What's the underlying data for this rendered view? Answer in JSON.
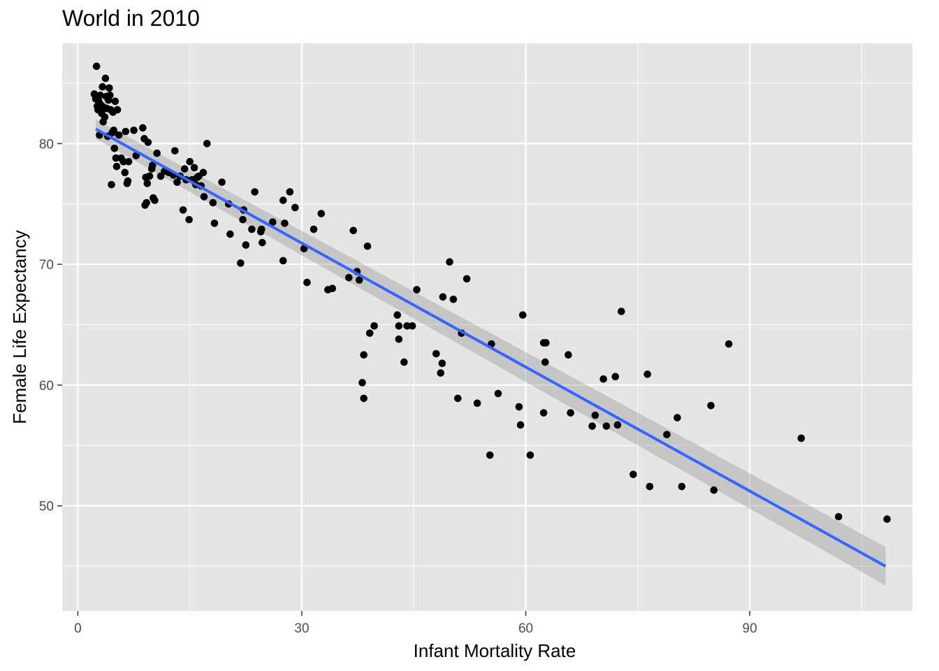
{
  "chart_data": {
    "type": "scatter",
    "title": "World in 2010",
    "xlabel": "Infant Mortality Rate",
    "ylabel": "Female Life Expectancy",
    "xlim": [
      -2.1,
      111.8
    ],
    "ylim": [
      41.3,
      88.3
    ],
    "x_ticks": [
      0,
      30,
      60,
      90
    ],
    "y_ticks": [
      50,
      60,
      70,
      80
    ],
    "grid": true,
    "background": "#e5e5e5",
    "point_color": "#000000",
    "fit_line_color": "#3366ff",
    "ribbon_color": "#999999",
    "fit_line": {
      "type": "linear",
      "x": [
        2.4,
        108.2
      ],
      "y": [
        81.2,
        45.0
      ],
      "ci_lower": [
        80.4,
        43.4
      ],
      "ci_upper": [
        82.0,
        46.6
      ]
    },
    "points": [
      [
        2.2,
        84.1
      ],
      [
        2.4,
        83.7
      ],
      [
        2.5,
        86.4
      ],
      [
        2.6,
        83.1
      ],
      [
        2.7,
        82.8
      ],
      [
        2.8,
        83.5
      ],
      [
        2.9,
        80.7
      ],
      [
        3.0,
        84.0
      ],
      [
        3.1,
        83.2
      ],
      [
        3.2,
        82.5
      ],
      [
        3.3,
        84.7
      ],
      [
        3.4,
        81.8
      ],
      [
        3.5,
        83.0
      ],
      [
        3.6,
        82.2
      ],
      [
        3.7,
        85.4
      ],
      [
        3.8,
        83.9
      ],
      [
        3.9,
        82.9
      ],
      [
        4.0,
        80.6
      ],
      [
        4.1,
        83.6
      ],
      [
        4.2,
        84.6
      ],
      [
        4.3,
        84.0
      ],
      [
        4.4,
        82.8
      ],
      [
        4.5,
        76.6
      ],
      [
        4.6,
        80.9
      ],
      [
        4.7,
        82.6
      ],
      [
        4.8,
        81.1
      ],
      [
        4.9,
        79.6
      ],
      [
        5.0,
        83.5
      ],
      [
        5.1,
        78.8
      ],
      [
        5.2,
        78.1
      ],
      [
        5.3,
        82.8
      ],
      [
        5.5,
        80.7
      ],
      [
        5.8,
        78.8
      ],
      [
        6.1,
        78.5
      ],
      [
        6.3,
        77.6
      ],
      [
        6.4,
        81.0
      ],
      [
        6.6,
        76.7
      ],
      [
        6.7,
        76.9
      ],
      [
        6.8,
        78.5
      ],
      [
        7.5,
        81.1
      ],
      [
        7.8,
        79.0
      ],
      [
        8.7,
        81.3
      ],
      [
        8.9,
        80.4
      ],
      [
        9.0,
        74.9
      ],
      [
        9.1,
        77.2
      ],
      [
        9.2,
        75.1
      ],
      [
        9.3,
        76.7
      ],
      [
        9.4,
        80.1
      ],
      [
        9.6,
        77.3
      ],
      [
        9.9,
        77.9
      ],
      [
        10.0,
        78.2
      ],
      [
        10.1,
        75.5
      ],
      [
        10.3,
        75.3
      ],
      [
        10.6,
        79.2
      ],
      [
        11.1,
        77.3
      ],
      [
        11.6,
        77.7
      ],
      [
        12.2,
        77.6
      ],
      [
        12.8,
        77.4
      ],
      [
        13.0,
        79.4
      ],
      [
        13.3,
        76.8
      ],
      [
        13.7,
        77.3
      ],
      [
        14.1,
        74.5
      ],
      [
        14.3,
        77.9
      ],
      [
        14.5,
        77.0
      ],
      [
        14.9,
        73.7
      ],
      [
        15.0,
        78.5
      ],
      [
        15.3,
        77.0
      ],
      [
        15.6,
        78.0
      ],
      [
        15.8,
        76.6
      ],
      [
        16.0,
        77.2
      ],
      [
        16.2,
        77.3
      ],
      [
        16.5,
        76.5
      ],
      [
        16.8,
        77.6
      ],
      [
        16.9,
        75.6
      ],
      [
        17.3,
        80.0
      ],
      [
        18.1,
        75.1
      ],
      [
        18.3,
        73.4
      ],
      [
        19.3,
        76.8
      ],
      [
        20.2,
        75.0
      ],
      [
        20.4,
        72.5
      ],
      [
        21.8,
        70.1
      ],
      [
        22.1,
        73.7
      ],
      [
        22.2,
        74.5
      ],
      [
        22.5,
        71.6
      ],
      [
        23.3,
        72.9
      ],
      [
        23.7,
        76.0
      ],
      [
        24.5,
        72.7
      ],
      [
        24.6,
        72.9
      ],
      [
        24.7,
        71.8
      ],
      [
        26.1,
        73.5
      ],
      [
        27.5,
        75.3
      ],
      [
        27.5,
        70.3
      ],
      [
        27.7,
        73.4
      ],
      [
        28.4,
        76.0
      ],
      [
        29.1,
        74.7
      ],
      [
        30.3,
        71.3
      ],
      [
        30.7,
        68.5
      ],
      [
        31.6,
        72.9
      ],
      [
        32.6,
        74.2
      ],
      [
        33.5,
        67.9
      ],
      [
        34.1,
        68.0
      ],
      [
        36.3,
        68.9
      ],
      [
        36.9,
        72.8
      ],
      [
        37.4,
        69.4
      ],
      [
        37.7,
        68.7
      ],
      [
        38.1,
        60.2
      ],
      [
        38.3,
        62.5
      ],
      [
        38.3,
        58.9
      ],
      [
        38.8,
        71.5
      ],
      [
        39.1,
        64.3
      ],
      [
        39.7,
        64.9
      ],
      [
        42.8,
        65.8
      ],
      [
        43.0,
        64.9
      ],
      [
        43.0,
        63.8
      ],
      [
        43.7,
        61.9
      ],
      [
        44.1,
        64.9
      ],
      [
        44.8,
        64.9
      ],
      [
        45.4,
        67.9
      ],
      [
        48.0,
        62.6
      ],
      [
        48.6,
        61.0
      ],
      [
        48.8,
        61.8
      ],
      [
        48.9,
        67.3
      ],
      [
        49.8,
        70.2
      ],
      [
        50.3,
        67.1
      ],
      [
        50.9,
        58.9
      ],
      [
        51.4,
        64.3
      ],
      [
        52.1,
        68.8
      ],
      [
        53.5,
        58.5
      ],
      [
        55.2,
        54.2
      ],
      [
        55.4,
        63.4
      ],
      [
        56.3,
        59.3
      ],
      [
        59.1,
        58.2
      ],
      [
        59.3,
        56.7
      ],
      [
        59.6,
        65.8
      ],
      [
        60.6,
        54.2
      ],
      [
        62.4,
        63.5
      ],
      [
        62.4,
        57.7
      ],
      [
        62.6,
        61.9
      ],
      [
        62.7,
        63.5
      ],
      [
        65.7,
        62.5
      ],
      [
        66.0,
        57.7
      ],
      [
        68.9,
        56.6
      ],
      [
        69.3,
        57.5
      ],
      [
        70.4,
        60.5
      ],
      [
        70.8,
        56.6
      ],
      [
        72.0,
        60.7
      ],
      [
        72.3,
        56.7
      ],
      [
        72.8,
        66.1
      ],
      [
        74.4,
        52.6
      ],
      [
        76.3,
        60.9
      ],
      [
        76.6,
        51.6
      ],
      [
        78.9,
        55.9
      ],
      [
        80.3,
        57.3
      ],
      [
        80.9,
        51.6
      ],
      [
        84.8,
        58.3
      ],
      [
        85.2,
        51.3
      ],
      [
        87.2,
        63.4
      ],
      [
        96.9,
        55.6
      ],
      [
        101.9,
        49.1
      ],
      [
        108.4,
        48.9
      ]
    ]
  }
}
